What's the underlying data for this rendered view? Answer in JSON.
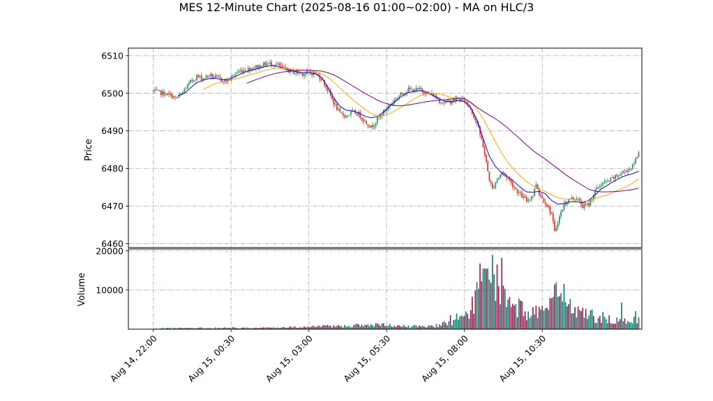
{
  "chart_data": {
    "type": "candlestick",
    "title": "MES 12-Minute Chart (2025-08-16 01:00~02:00) - MA on HLC/3",
    "price_panel": {
      "ylabel": "Price",
      "ylim": [
        6459,
        6512
      ],
      "yticks": [
        6460,
        6470,
        6480,
        6490,
        6500,
        6510
      ],
      "grid": true
    },
    "volume_panel": {
      "ylabel": "Volume",
      "ylim": [
        0,
        20500
      ],
      "yticks": [
        10000,
        20000
      ],
      "grid": true
    },
    "x_tick_labels": [
      "Aug 14, 22:00",
      "Aug 15, 00:30",
      "Aug 15, 03:00",
      "Aug 15, 05:30",
      "Aug 15, 08:00",
      "Aug 15, 10:30"
    ],
    "x_tick_positions": [
      0,
      12.5,
      25,
      37.5,
      50,
      62.5
    ],
    "x_range": [
      -4,
      78.5
    ],
    "colors": {
      "up": "#2e8b57",
      "down": "#e8281e",
      "ma_fast": "#0000ff",
      "ma_mid": "#ffa500",
      "ma_slow": "#800080",
      "vol_up": "#1b7a6e",
      "vol_down": "#8b2252"
    },
    "price_path": [
      [
        0,
        6500.5
      ],
      [
        1,
        6500.2
      ],
      [
        2,
        6499.8
      ],
      [
        3,
        6499.3
      ],
      [
        3.5,
        6498.6
      ],
      [
        4.5,
        6499.5
      ],
      [
        5,
        6501
      ],
      [
        6,
        6503
      ],
      [
        7,
        6504.5
      ],
      [
        8,
        6504
      ],
      [
        9,
        6504.8
      ],
      [
        10,
        6504.2
      ],
      [
        11,
        6503.5
      ],
      [
        12,
        6503.3
      ],
      [
        13,
        6505
      ],
      [
        14,
        6506
      ],
      [
        15,
        6506.3
      ],
      [
        16,
        6506.8
      ],
      [
        17,
        6507.2
      ],
      [
        18,
        6507.8
      ],
      [
        19,
        6508
      ],
      [
        20,
        6507.5
      ],
      [
        21,
        6506.5
      ],
      [
        22,
        6505.8
      ],
      [
        23,
        6505.5
      ],
      [
        24,
        6505.2
      ],
      [
        25,
        6505.5
      ],
      [
        26,
        6505.3
      ],
      [
        27,
        6504
      ],
      [
        28,
        6501
      ],
      [
        29,
        6497.5
      ],
      [
        30,
        6494.5
      ],
      [
        31,
        6494
      ],
      [
        32,
        6495
      ],
      [
        33,
        6494.5
      ],
      [
        34,
        6492.5
      ],
      [
        35,
        6491
      ],
      [
        36,
        6493
      ],
      [
        37,
        6495
      ],
      [
        38,
        6497
      ],
      [
        39,
        6498.5
      ],
      [
        40,
        6500
      ],
      [
        41,
        6501
      ],
      [
        42,
        6500.8
      ],
      [
        43,
        6501
      ],
      [
        44,
        6500
      ],
      [
        45,
        6499.5
      ],
      [
        46,
        6498
      ],
      [
        47,
        6497.5
      ],
      [
        48,
        6498
      ],
      [
        49,
        6498.5
      ],
      [
        50,
        6498
      ],
      [
        51,
        6496
      ],
      [
        52,
        6492
      ],
      [
        53,
        6486
      ],
      [
        54,
        6477
      ],
      [
        54.5,
        6474.5
      ],
      [
        55,
        6476.5
      ],
      [
        56,
        6479
      ],
      [
        57,
        6477.5
      ],
      [
        58,
        6475
      ],
      [
        59,
        6473
      ],
      [
        60,
        6471.5
      ],
      [
        61,
        6473
      ],
      [
        61.5,
        6476
      ],
      [
        62,
        6473.5
      ],
      [
        63,
        6471
      ],
      [
        64,
        6468
      ],
      [
        64.5,
        6463
      ],
      [
        65,
        6466
      ],
      [
        66,
        6470.5
      ],
      [
        67,
        6472
      ],
      [
        68,
        6472.2
      ],
      [
        69,
        6470
      ],
      [
        70,
        6470.5
      ],
      [
        71,
        6474
      ],
      [
        72,
        6476
      ],
      [
        73,
        6476.5
      ],
      [
        74,
        6477.5
      ],
      [
        75,
        6478.5
      ],
      [
        76,
        6479.5
      ],
      [
        77,
        6480.5
      ],
      [
        77.5,
        6482.5
      ],
      [
        78,
        6484.5
      ]
    ],
    "ma_fast": [
      [
        4,
        6499.4
      ],
      [
        5,
        6500
      ],
      [
        6,
        6501.5
      ],
      [
        7,
        6502.8
      ],
      [
        8,
        6503.5
      ],
      [
        9,
        6503.9
      ],
      [
        10,
        6504
      ],
      [
        11,
        6503.6
      ],
      [
        12,
        6503.6
      ],
      [
        13,
        6504.3
      ],
      [
        14,
        6505.1
      ],
      [
        15,
        6505.8
      ],
      [
        16,
        6506.2
      ],
      [
        17,
        6506.6
      ],
      [
        18,
        6507.1
      ],
      [
        19,
        6507.4
      ],
      [
        20,
        6507.1
      ],
      [
        21,
        6506.6
      ],
      [
        22,
        6506.1
      ],
      [
        23,
        6505.7
      ],
      [
        24,
        6505.5
      ],
      [
        25,
        6505.5
      ],
      [
        26,
        6505.2
      ],
      [
        27,
        6504.2
      ],
      [
        28,
        6501.8
      ],
      [
        29,
        6498.8
      ],
      [
        30,
        6496.5
      ],
      [
        31,
        6495.5
      ],
      [
        32,
        6495.3
      ],
      [
        33,
        6494.8
      ],
      [
        34,
        6493.9
      ],
      [
        35,
        6493.5
      ],
      [
        36,
        6493.8
      ],
      [
        37,
        6495
      ],
      [
        38,
        6496.5
      ],
      [
        39,
        6498
      ],
      [
        40,
        6499.3
      ],
      [
        41,
        6500.2
      ],
      [
        42,
        6500.6
      ],
      [
        43,
        6500.7
      ],
      [
        44,
        6500.2
      ],
      [
        45,
        6499.4
      ],
      [
        46,
        6498.5
      ],
      [
        47,
        6497.8
      ],
      [
        48,
        6497.8
      ],
      [
        49,
        6498.1
      ],
      [
        50,
        6497.8
      ],
      [
        51,
        6496.2
      ],
      [
        52,
        6493
      ],
      [
        53,
        6488
      ],
      [
        54,
        6483.3
      ],
      [
        55,
        6480.5
      ],
      [
        56,
        6478.8
      ],
      [
        57,
        6477.8
      ],
      [
        58,
        6476.5
      ],
      [
        59,
        6475
      ],
      [
        60,
        6473.8
      ],
      [
        61,
        6473.7
      ],
      [
        62,
        6474
      ],
      [
        63,
        6473.3
      ],
      [
        64,
        6471.5
      ],
      [
        65,
        6470.5
      ],
      [
        66,
        6470.7
      ],
      [
        67,
        6471.2
      ],
      [
        68,
        6471.2
      ],
      [
        69,
        6470.9
      ],
      [
        70,
        6471.6
      ],
      [
        71,
        6473
      ],
      [
        72,
        6474.6
      ],
      [
        73,
        6475.6
      ],
      [
        74,
        6476.6
      ],
      [
        75,
        6477.5
      ],
      [
        76,
        6478.2
      ],
      [
        77,
        6478.6
      ],
      [
        78,
        6479.3
      ]
    ],
    "ma_mid": [
      [
        8,
        6501
      ],
      [
        9,
        6501.8
      ],
      [
        10,
        6502.6
      ],
      [
        11,
        6503
      ],
      [
        12,
        6503.3
      ],
      [
        13,
        6503.7
      ],
      [
        14,
        6504.1
      ],
      [
        15,
        6504.6
      ],
      [
        16,
        6505.1
      ],
      [
        17,
        6505.6
      ],
      [
        18,
        6506.1
      ],
      [
        19,
        6506.5
      ],
      [
        20,
        6506.6
      ],
      [
        21,
        6506.6
      ],
      [
        22,
        6506.5
      ],
      [
        23,
        6506.3
      ],
      [
        24,
        6506.1
      ],
      [
        25,
        6505.9
      ],
      [
        26,
        6505.7
      ],
      [
        27,
        6505.2
      ],
      [
        28,
        6504.3
      ],
      [
        29,
        6503
      ],
      [
        30,
        6501.4
      ],
      [
        31,
        6499.8
      ],
      [
        32,
        6498.4
      ],
      [
        33,
        6497
      ],
      [
        34,
        6495.8
      ],
      [
        35,
        6494.6
      ],
      [
        36,
        6494
      ],
      [
        37,
        6494
      ],
      [
        38,
        6494.6
      ],
      [
        39,
        6495.5
      ],
      [
        40,
        6496.5
      ],
      [
        41,
        6497.5
      ],
      [
        42,
        6498.6
      ],
      [
        43,
        6499.5
      ],
      [
        44,
        6499.9
      ],
      [
        45,
        6500
      ],
      [
        46,
        6499.8
      ],
      [
        47,
        6499.3
      ],
      [
        48,
        6498.8
      ],
      [
        49,
        6498.6
      ],
      [
        50,
        6498.3
      ],
      [
        51,
        6497.5
      ],
      [
        52,
        6495.8
      ],
      [
        53,
        6493.3
      ],
      [
        54,
        6490.2
      ],
      [
        55,
        6487
      ],
      [
        56,
        6484
      ],
      [
        57,
        6481.6
      ],
      [
        58,
        6479.6
      ],
      [
        59,
        6478
      ],
      [
        60,
        6476.5
      ],
      [
        61,
        6475.4
      ],
      [
        62,
        6474.6
      ],
      [
        63,
        6473.9
      ],
      [
        64,
        6473
      ],
      [
        65,
        6472.3
      ],
      [
        66,
        6471.9
      ],
      [
        67,
        6471.8
      ],
      [
        68,
        6471.5
      ],
      [
        69,
        6471.3
      ],
      [
        70,
        6471.4
      ],
      [
        71,
        6472
      ],
      [
        72,
        6472.6
      ],
      [
        73,
        6473
      ],
      [
        74,
        6473.7
      ],
      [
        75,
        6474.5
      ],
      [
        76,
        6475.2
      ],
      [
        77,
        6476.1
      ],
      [
        78,
        6477.3
      ]
    ],
    "ma_slow": [
      [
        15,
        6502.7
      ],
      [
        16,
        6503.3
      ],
      [
        17,
        6503.9
      ],
      [
        18,
        6504.5
      ],
      [
        19,
        6505
      ],
      [
        20,
        6505.4
      ],
      [
        21,
        6505.7
      ],
      [
        22,
        6505.9
      ],
      [
        23,
        6506
      ],
      [
        24,
        6506.1
      ],
      [
        25,
        6506.1
      ],
      [
        26,
        6506
      ],
      [
        27,
        6505.9
      ],
      [
        28,
        6505.5
      ],
      [
        29,
        6504.9
      ],
      [
        30,
        6504
      ],
      [
        31,
        6503
      ],
      [
        32,
        6502
      ],
      [
        33,
        6501
      ],
      [
        34,
        6500
      ],
      [
        35,
        6499.1
      ],
      [
        36,
        6498.2
      ],
      [
        37,
        6497.5
      ],
      [
        38,
        6497
      ],
      [
        39,
        6496.7
      ],
      [
        40,
        6496.7
      ],
      [
        41,
        6496.9
      ],
      [
        42,
        6497.2
      ],
      [
        43,
        6497.5
      ],
      [
        44,
        6497.8
      ],
      [
        45,
        6498
      ],
      [
        46,
        6498.2
      ],
      [
        47,
        6498.3
      ],
      [
        48,
        6498.5
      ],
      [
        49,
        6498.7
      ],
      [
        50,
        6498.6
      ],
      [
        51,
        6497.6
      ],
      [
        52,
        6496.3
      ],
      [
        53,
        6495.2
      ],
      [
        54,
        6494.2
      ],
      [
        55,
        6493.2
      ],
      [
        56,
        6492
      ],
      [
        57,
        6490.7
      ],
      [
        58,
        6489.2
      ],
      [
        59,
        6487.8
      ],
      [
        60,
        6486.2
      ],
      [
        61,
        6484.8
      ],
      [
        62,
        6483.6
      ],
      [
        63,
        6482.5
      ],
      [
        64,
        6481.2
      ],
      [
        65,
        6480
      ],
      [
        66,
        6478.7
      ],
      [
        67,
        6477.5
      ],
      [
        68,
        6476.5
      ],
      [
        69,
        6475.5
      ],
      [
        70,
        6474.5
      ],
      [
        71,
        6474
      ],
      [
        72,
        6473.8
      ],
      [
        73,
        6473.8
      ],
      [
        74,
        6473.9
      ],
      [
        75,
        6474
      ],
      [
        76,
        6474.2
      ],
      [
        77,
        6474.4
      ],
      [
        78,
        6474.8
      ]
    ],
    "volume_profile": [
      [
        0,
        250
      ],
      [
        10,
        350
      ],
      [
        20,
        450
      ],
      [
        25,
        700
      ],
      [
        30,
        900
      ],
      [
        36,
        1200
      ],
      [
        40,
        800
      ],
      [
        45,
        900
      ],
      [
        48,
        2000
      ],
      [
        50,
        3000
      ],
      [
        51,
        6000
      ],
      [
        52,
        10500
      ],
      [
        53,
        13000
      ],
      [
        55,
        15000
      ],
      [
        56,
        9000
      ],
      [
        58,
        6000
      ],
      [
        60,
        5000
      ],
      [
        64,
        6000
      ],
      [
        66,
        7000
      ],
      [
        68,
        5000
      ],
      [
        70,
        4000
      ],
      [
        72,
        3000
      ],
      [
        74,
        2500
      ],
      [
        76,
        2000
      ],
      [
        78,
        3000
      ]
    ],
    "volume_spikes": [
      [
        47.7,
        3600
      ],
      [
        48.7,
        4000
      ],
      [
        52.2,
        10300
      ],
      [
        52.6,
        16800
      ],
      [
        54.4,
        19000
      ],
      [
        54.8,
        14000
      ],
      [
        55.4,
        11000
      ],
      [
        55.9,
        18200
      ],
      [
        57,
        7600
      ],
      [
        58.8,
        7800
      ],
      [
        61.5,
        6000
      ],
      [
        63.7,
        8000
      ],
      [
        64.4,
        11400
      ],
      [
        64.8,
        12000
      ],
      [
        65.6,
        9200
      ],
      [
        66,
        11600
      ],
      [
        66.8,
        6400
      ],
      [
        69.6,
        5200
      ],
      [
        70.3,
        4800
      ],
      [
        72.2,
        4400
      ],
      [
        75.3,
        6800
      ],
      [
        77.4,
        4600
      ]
    ]
  }
}
